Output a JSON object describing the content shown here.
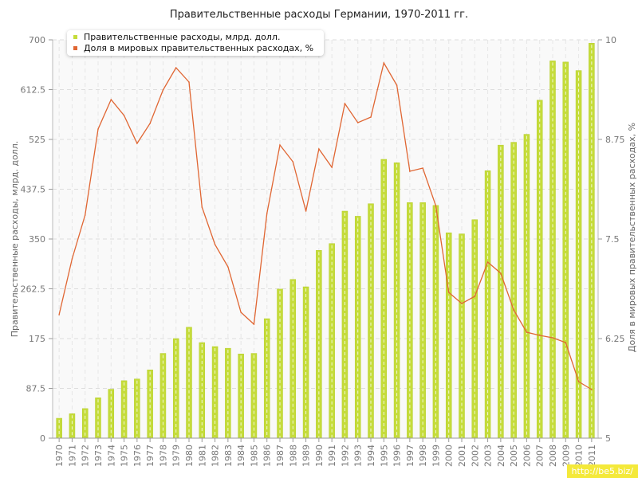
{
  "chart_data": {
    "type": "bar+line",
    "title": "Правительственные расходы Германии, 1970-2011 гг.",
    "ylabel_left": "Правительственные расходы, млрд. долл.",
    "ylabel_right": "Доля в мировых правительственных расходах, %",
    "categories": [
      "1970",
      "1971",
      "1972",
      "1973",
      "1974",
      "1975",
      "1976",
      "1977",
      "1978",
      "1979",
      "1980",
      "1981",
      "1982",
      "1983",
      "1984",
      "1985",
      "1986",
      "1987",
      "1988",
      "1989",
      "1990",
      "1991",
      "1992",
      "1993",
      "1994",
      "1995",
      "1996",
      "1997",
      "1998",
      "1999",
      "2000",
      "2001",
      "2002",
      "2003",
      "2004",
      "2005",
      "2006",
      "2007",
      "2008",
      "2009",
      "2010",
      "2011"
    ],
    "left_ticks": [
      "0",
      "87.5",
      "175",
      "262.5",
      "350",
      "437.5",
      "525",
      "612.5",
      "700"
    ],
    "right_ticks": [
      "5",
      "6.25",
      "7.5",
      "8.75",
      "10"
    ],
    "ylim_left": [
      0,
      700
    ],
    "ylim_right": [
      5,
      10
    ],
    "series": [
      {
        "name": "Правительственные расходы, млрд. долл.",
        "kind": "bar",
        "color": "#c5dc3a",
        "values": [
          35,
          43,
          52,
          71,
          86,
          101,
          104,
          120,
          149,
          175,
          195,
          168,
          161,
          158,
          148,
          149,
          210,
          262,
          279,
          266,
          330,
          342,
          399,
          390,
          412,
          490,
          484,
          414,
          414,
          409,
          361,
          359,
          384,
          470,
          515,
          520,
          534,
          594,
          663,
          661,
          646,
          694
        ]
      },
      {
        "name": "Доля в мировых правительственных расходах, %",
        "kind": "line",
        "color": "#e06633",
        "values": [
          6.55,
          7.25,
          7.8,
          8.88,
          9.25,
          9.05,
          8.7,
          8.95,
          9.37,
          9.65,
          9.47,
          7.9,
          7.43,
          7.15,
          6.58,
          6.43,
          7.82,
          8.68,
          8.47,
          7.85,
          8.63,
          8.4,
          9.2,
          8.96,
          9.03,
          9.71,
          9.43,
          8.35,
          8.39,
          7.92,
          6.83,
          6.69,
          6.78,
          7.21,
          7.07,
          6.61,
          6.33,
          6.29,
          6.26,
          6.2,
          5.71,
          5.61
        ]
      }
    ],
    "grid": true,
    "legend": "top-left"
  },
  "watermark": "http://be5.biz/"
}
